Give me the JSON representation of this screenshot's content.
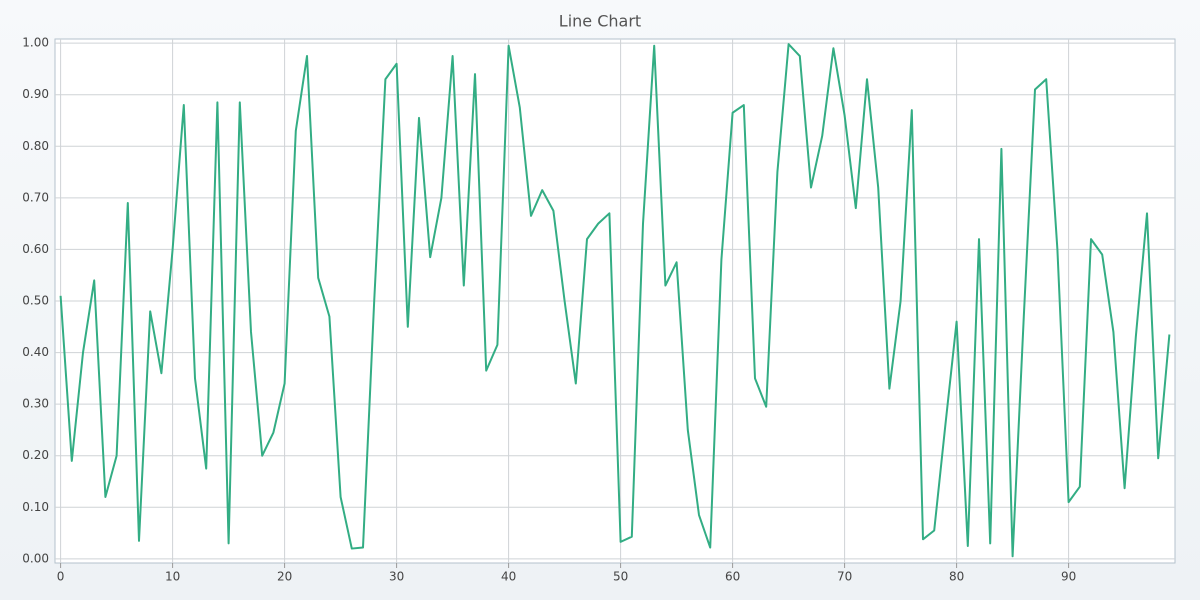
{
  "chart_data": {
    "type": "line",
    "title": "Line Chart",
    "x": [
      0,
      1,
      2,
      3,
      4,
      5,
      6,
      7,
      8,
      9,
      10,
      11,
      12,
      13,
      14,
      15,
      16,
      17,
      18,
      19,
      20,
      21,
      22,
      23,
      24,
      25,
      26,
      27,
      28,
      29,
      30,
      31,
      32,
      33,
      34,
      35,
      36,
      37,
      38,
      39,
      40,
      41,
      42,
      43,
      44,
      45,
      46,
      47,
      48,
      49,
      50,
      51,
      52,
      53,
      54,
      55,
      56,
      57,
      58,
      59,
      60,
      61,
      62,
      63,
      64,
      65,
      66,
      67,
      68,
      69,
      70,
      71,
      72,
      73,
      74,
      75,
      76,
      77,
      78,
      79,
      80,
      81,
      82,
      83,
      84,
      85,
      86,
      87,
      88,
      89,
      90,
      91,
      92,
      93,
      94,
      95,
      96,
      97,
      98,
      99
    ],
    "series": [
      {
        "color": "#33ad84",
        "values": [
          0.51,
          0.19,
          0.4,
          0.54,
          0.12,
          0.2,
          0.69,
          0.035,
          0.48,
          0.36,
          0.6,
          0.88,
          0.35,
          0.175,
          0.885,
          0.03,
          0.885,
          0.44,
          0.2,
          0.245,
          0.34,
          0.83,
          0.975,
          0.545,
          0.47,
          0.12,
          0.02,
          0.022,
          0.5,
          0.93,
          0.96,
          0.45,
          0.855,
          0.585,
          0.7,
          0.975,
          0.53,
          0.94,
          0.365,
          0.415,
          0.995,
          0.875,
          0.665,
          0.715,
          0.675,
          0.5,
          0.34,
          0.62,
          0.65,
          0.67,
          0.033,
          0.043,
          0.65,
          0.995,
          0.53,
          0.575,
          0.25,
          0.085,
          0.022,
          0.58,
          0.865,
          0.88,
          0.35,
          0.295,
          0.75,
          0.998,
          0.975,
          0.72,
          0.82,
          0.99,
          0.86,
          0.68,
          0.93,
          0.72,
          0.33,
          0.5,
          0.87,
          0.038,
          0.055,
          0.26,
          0.46,
          0.025,
          0.62,
          0.03,
          0.795,
          0.005,
          0.47,
          0.91,
          0.93,
          0.6,
          0.11,
          0.14,
          0.62,
          0.59,
          0.44,
          0.137,
          0.43,
          0.67,
          0.195,
          0.435
        ]
      }
    ],
    "xlim": [
      -0.5,
      99.5
    ],
    "xticks": [
      0,
      10,
      20,
      30,
      40,
      50,
      60,
      70,
      80,
      90
    ],
    "ylim": [
      -0.008,
      1.008
    ],
    "yticks": [
      {
        "value": 0,
        "label": "0.00"
      },
      {
        "value": 0.1,
        "label": "0.10"
      },
      {
        "value": 0.2,
        "label": "0.20"
      },
      {
        "value": 0.3,
        "label": "0.30"
      },
      {
        "value": 0.4,
        "label": "0.40"
      },
      {
        "value": 0.5,
        "label": "0.50"
      },
      {
        "value": 0.6,
        "label": "0.60"
      },
      {
        "value": 0.7,
        "label": "0.70"
      },
      {
        "value": 0.8,
        "label": "0.80"
      },
      {
        "value": 0.9,
        "label": "0.90"
      },
      {
        "value": 1,
        "label": "1.00"
      }
    ],
    "grid": true
  }
}
